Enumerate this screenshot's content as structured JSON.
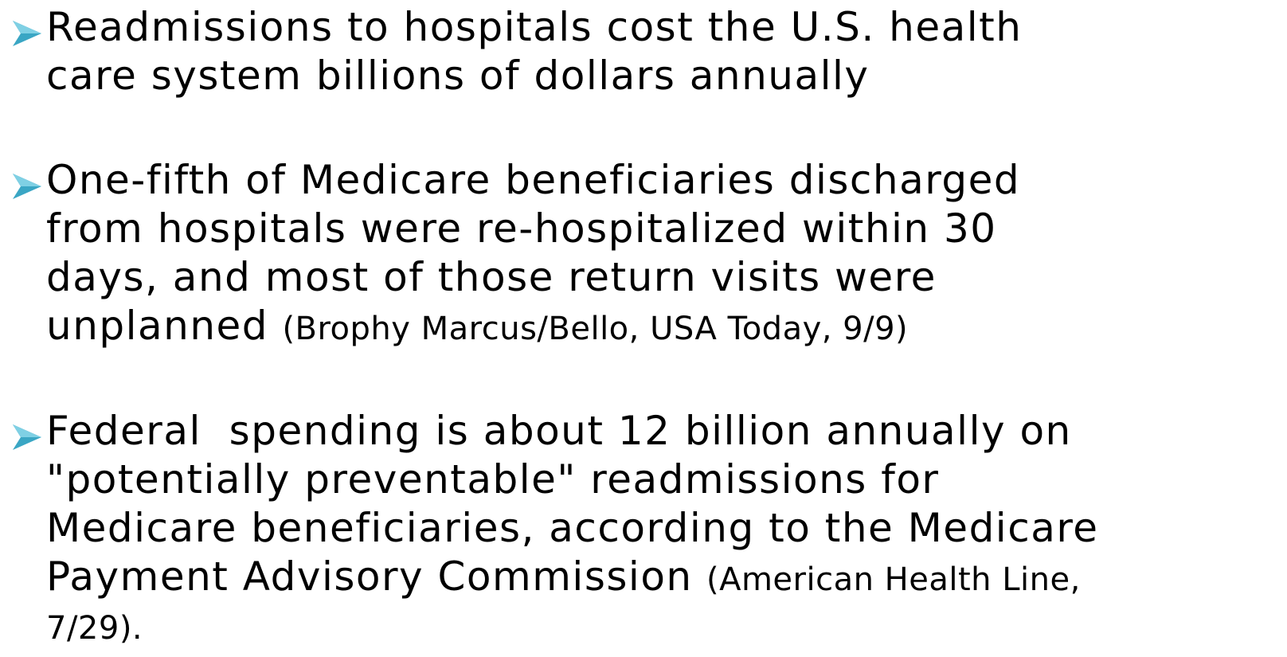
{
  "bullets": [
    {
      "lines": [
        {
          "text": "Readmissions to hospitals cost the U.S. health"
        },
        {
          "text": "care system billions of dollars annually"
        }
      ]
    },
    {
      "lines": [
        {
          "text": "One-fifth of Medicare beneficiaries discharged"
        },
        {
          "text": "from hospitals were re-hospitalized within 30"
        },
        {
          "text": "days, and most of those return visits were"
        },
        {
          "text": "unplanned",
          "citation": "(Brophy Marcus/Bello, USA Today, 9/9)"
        }
      ]
    },
    {
      "lines": [
        {
          "text": "Federal  spending is about 12 billion annually on"
        },
        {
          "text": "\"potentially preventable\" readmissions for"
        },
        {
          "text": "Medicare beneficiaries, according to the Medicare"
        },
        {
          "text": "Payment Advisory Commission",
          "citation": "(American Health Line,"
        },
        {
          "citation": "7/29)."
        }
      ]
    }
  ]
}
